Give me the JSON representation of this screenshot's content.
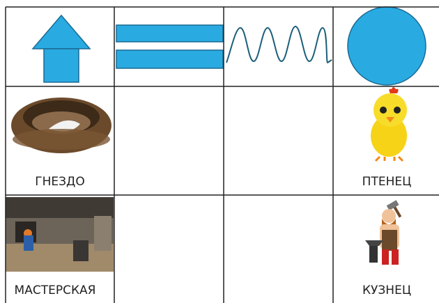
{
  "table": {
    "rows": [
      [
        "ГНЕЗДО",
        "ПТЕНЕЦ"
      ],
      [
        "МАСТЕРСКАЯ",
        "КУЗНЕЦ"
      ]
    ]
  }
}
